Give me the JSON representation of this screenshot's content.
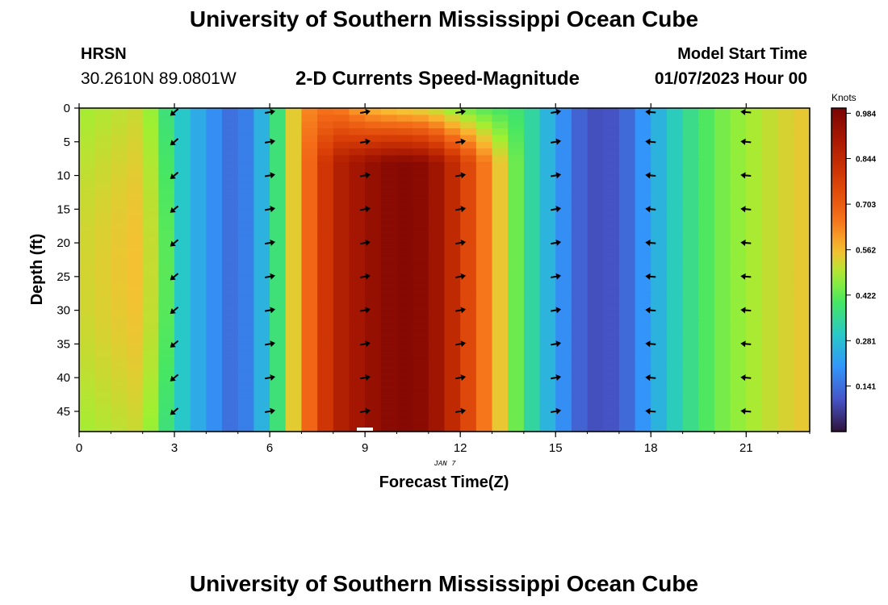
{
  "header": {
    "title": "University of Southern Mississippi Ocean Cube",
    "station": "HRSN",
    "coords": "30.2610N  89.0801W",
    "subtitle": "2-D Currents Speed-Magnitude",
    "start_label": "Model Start Time",
    "start_time": "01/07/2023 Hour 00"
  },
  "footer": {
    "title": "University of Southern Mississippi Ocean Cube"
  },
  "chart_data": {
    "type": "heatmap",
    "title": "2-D Currents Speed-Magnitude",
    "xlabel": "Forecast Time(Z)",
    "ylabel": "Depth (ft)",
    "date_label": "JAN 7",
    "xlim": [
      0,
      23
    ],
    "ylim": [
      48,
      0
    ],
    "x_ticks": [
      0,
      3,
      6,
      9,
      12,
      15,
      18,
      21
    ],
    "y_ticks": [
      0,
      5,
      10,
      15,
      20,
      25,
      30,
      35,
      40,
      45
    ],
    "colorbar": {
      "label": "Knots",
      "range": [
        0.0,
        1.0
      ],
      "ticks": [
        "0.141",
        "0.281",
        "0.422",
        "0.562",
        "0.703",
        "0.844",
        "0.984"
      ]
    },
    "hour_speeds": [
      0.48,
      0.5,
      0.52,
      0.33,
      0.21,
      0.12,
      0.3,
      0.62,
      0.86,
      0.93,
      0.98,
      0.96,
      0.8,
      0.6,
      0.38,
      0.22,
      0.09,
      0.1,
      0.23,
      0.34,
      0.43,
      0.48,
      0.52,
      0.55
    ],
    "vectors": [
      {
        "hour": 3,
        "direction": "southwest"
      },
      {
        "hour": 6,
        "direction": "east"
      },
      {
        "hour": 9,
        "direction": "east"
      },
      {
        "hour": 12,
        "direction": "east"
      },
      {
        "hour": 15,
        "direction": "east"
      },
      {
        "hour": 18,
        "direction": "west"
      },
      {
        "hour": 21,
        "direction": "west"
      }
    ],
    "vector_depths": [
      0,
      5,
      10,
      15,
      20,
      25,
      30,
      35,
      40,
      45
    ]
  }
}
